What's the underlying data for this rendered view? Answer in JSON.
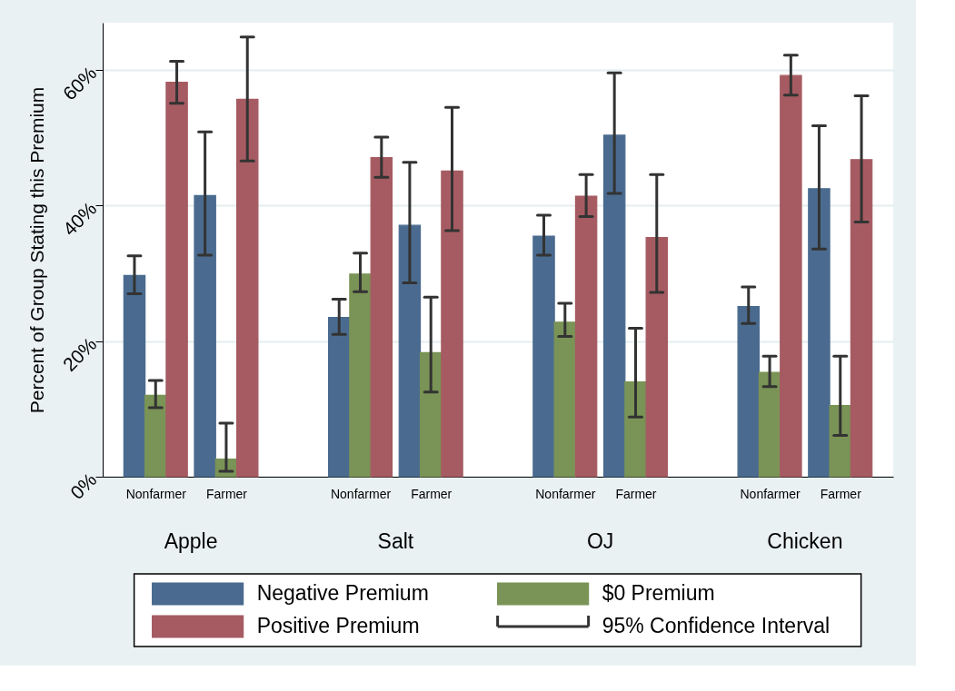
{
  "chart_data": {
    "type": "bar",
    "ylabel": "Percent of Group Stating this Premium",
    "categories": [
      "Nonfarmer",
      "Farmer",
      "Nonfarmer",
      "Farmer",
      "Nonfarmer",
      "Farmer",
      "Nonfarmer",
      "Farmer"
    ],
    "annotations": [
      "Apple",
      "Salt",
      "OJ",
      "Chicken",
      "95% Confidence Interval"
    ],
    "series": [
      {
        "name": "Negative Premium",
        "color": "#4a6b8f",
        "values": [
          29.7,
          41.5,
          23.5,
          37.1,
          35.5,
          50.4,
          25.1,
          42.5
        ],
        "errors": [
          [
            27.0,
            32.6
          ],
          [
            32.7,
            50.9
          ],
          [
            21.0,
            26.2
          ],
          [
            28.6,
            46.4
          ],
          [
            32.7,
            38.6
          ],
          [
            41.8,
            59.6
          ],
          [
            22.6,
            28.0
          ],
          [
            33.6,
            51.8
          ]
        ]
      },
      {
        "name": "$0 Premium",
        "color": "#7a9356",
        "values": [
          12.0,
          2.6,
          29.9,
          18.3,
          22.8,
          14.0,
          15.4,
          10.5
        ],
        "errors": [
          [
            10.2,
            14.2
          ],
          [
            0.8,
            7.9
          ],
          [
            27.3,
            33.0
          ],
          [
            12.5,
            26.5
          ],
          [
            20.7,
            25.6
          ],
          [
            8.8,
            21.9
          ],
          [
            13.3,
            17.8
          ],
          [
            6.1,
            17.8
          ]
        ]
      },
      {
        "name": "Positive Premium",
        "color": "#a65b62",
        "values": [
          58.2,
          55.7,
          47.1,
          45.1,
          41.4,
          35.3,
          59.2,
          46.8
        ],
        "errors": [
          [
            55.1,
            61.3
          ],
          [
            46.6,
            64.9
          ],
          [
            44.2,
            50.1
          ],
          [
            36.3,
            54.5
          ],
          [
            38.4,
            44.6
          ],
          [
            27.2,
            44.6
          ],
          [
            56.3,
            62.2
          ],
          [
            37.6,
            56.2
          ]
        ]
      }
    ],
    "ylim": [
      0,
      67
    ],
    "yticks": [
      {
        "value": 0,
        "label": "0%"
      },
      {
        "value": 20,
        "label": "20%"
      },
      {
        "value": 40,
        "label": "40%"
      },
      {
        "value": 60,
        "label": "60%"
      }
    ],
    "grid": "y",
    "legend": "bottom"
  }
}
